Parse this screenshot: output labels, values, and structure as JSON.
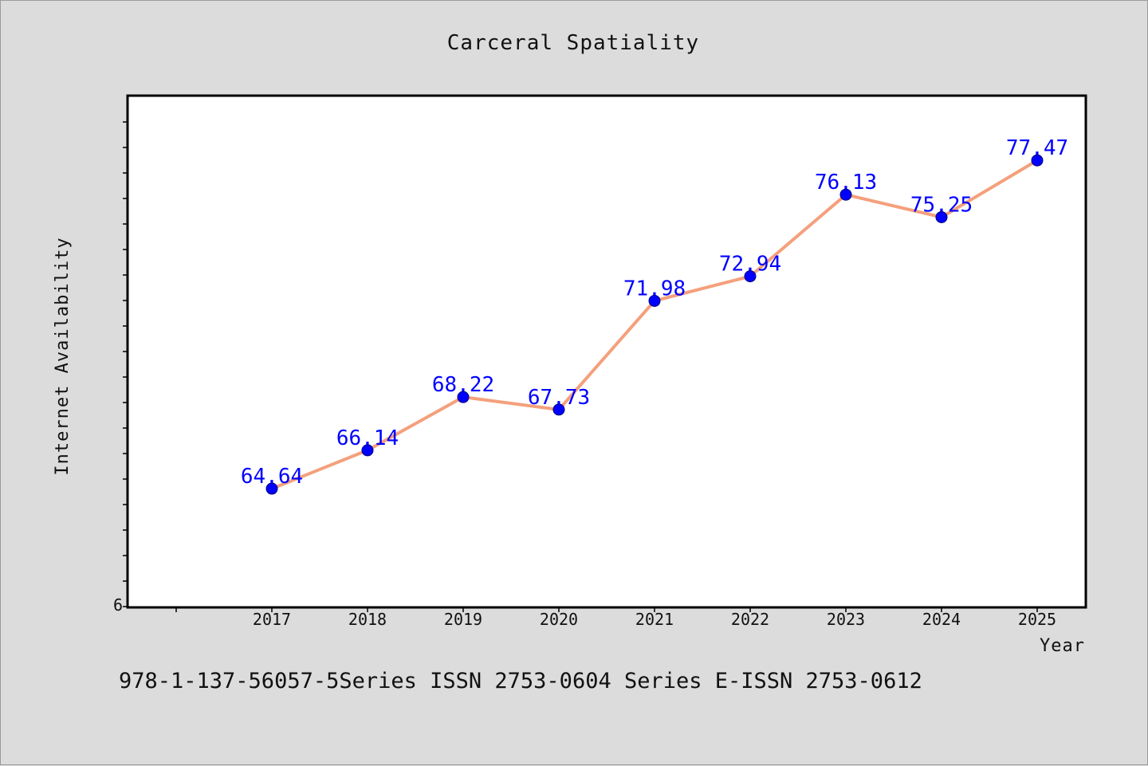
{
  "chart_data": {
    "type": "line",
    "title": "Carceral Spatiality",
    "xlabel": "Year",
    "ylabel": "Internet Availability",
    "categories": [
      "2017",
      "2018",
      "2019",
      "2020",
      "2021",
      "2022",
      "2023",
      "2024",
      "2025"
    ],
    "series": [
      {
        "values": [
          64.64,
          66.14,
          68.22,
          67.73,
          71.98,
          72.94,
          76.13,
          75.25,
          77.47
        ]
      }
    ],
    "data_labels": [
      "64.64",
      "66.14",
      "68.22",
      "67.73",
      "71.98",
      "72.94",
      "76.13",
      "75.25",
      "77.47"
    ],
    "y_tick_labels": [
      "6"
    ],
    "ylim": [
      60,
      80
    ],
    "grid": false,
    "line_color": "#f4a07c",
    "marker_color": "#0000ff",
    "label_color": "#0000ff"
  },
  "footer": {
    "text": "978-1-137-56057-5Series ISSN 2753-0604 Series E-ISSN 2753-0612"
  }
}
